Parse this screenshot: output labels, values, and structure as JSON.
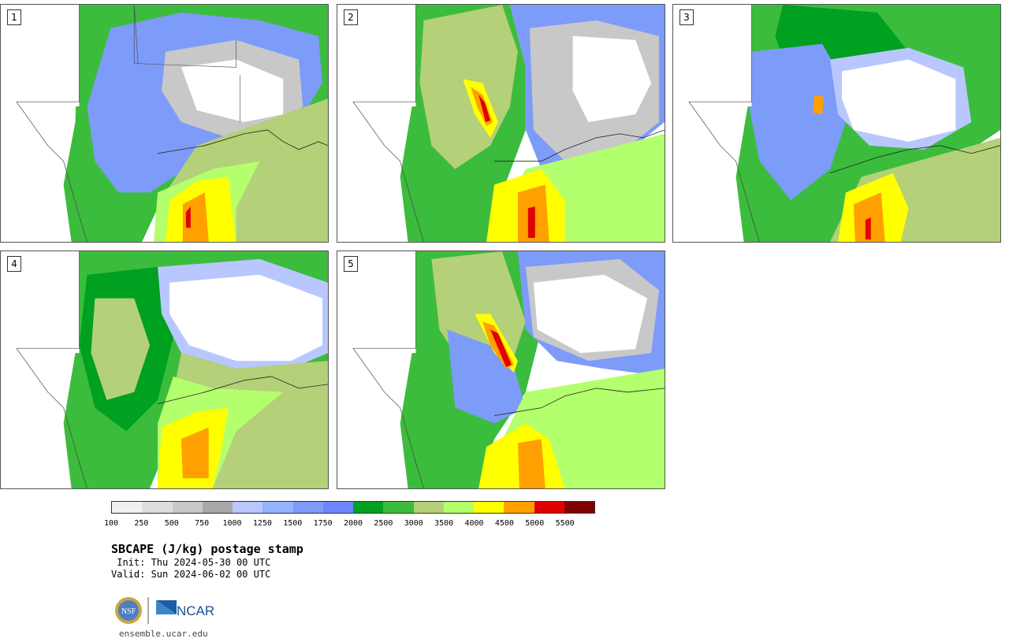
{
  "panels": [
    {
      "label": "1"
    },
    {
      "label": "2"
    },
    {
      "label": "3"
    },
    {
      "label": "4"
    },
    {
      "label": "5"
    }
  ],
  "colorbar": {
    "colors": [
      "#f0f0f0",
      "#dcdcdc",
      "#c8c8c8",
      "#a8a8a8",
      "#b9c7ff",
      "#96b2ff",
      "#7d9bf8",
      "#6e86ff",
      "#00a020",
      "#3cbc3c",
      "#b4d078",
      "#b4ff6e",
      "#ffff00",
      "#ffa000",
      "#e00000",
      "#800000"
    ],
    "ticks": [
      "100",
      "250",
      "500",
      "750",
      "1000",
      "1250",
      "1500",
      "1750",
      "2000",
      "2500",
      "3000",
      "3500",
      "4000",
      "4500",
      "5000",
      "5500"
    ]
  },
  "title": "SBCAPE (J/kg) postage stamp",
  "init": " Init: Thu 2024-05-30 00 UTC",
  "valid": "Valid: Sun 2024-06-02 00 UTC",
  "logos": {
    "nsf": "NSF",
    "ncar": "NCAR"
  },
  "site": "ensemble.ucar.edu"
}
